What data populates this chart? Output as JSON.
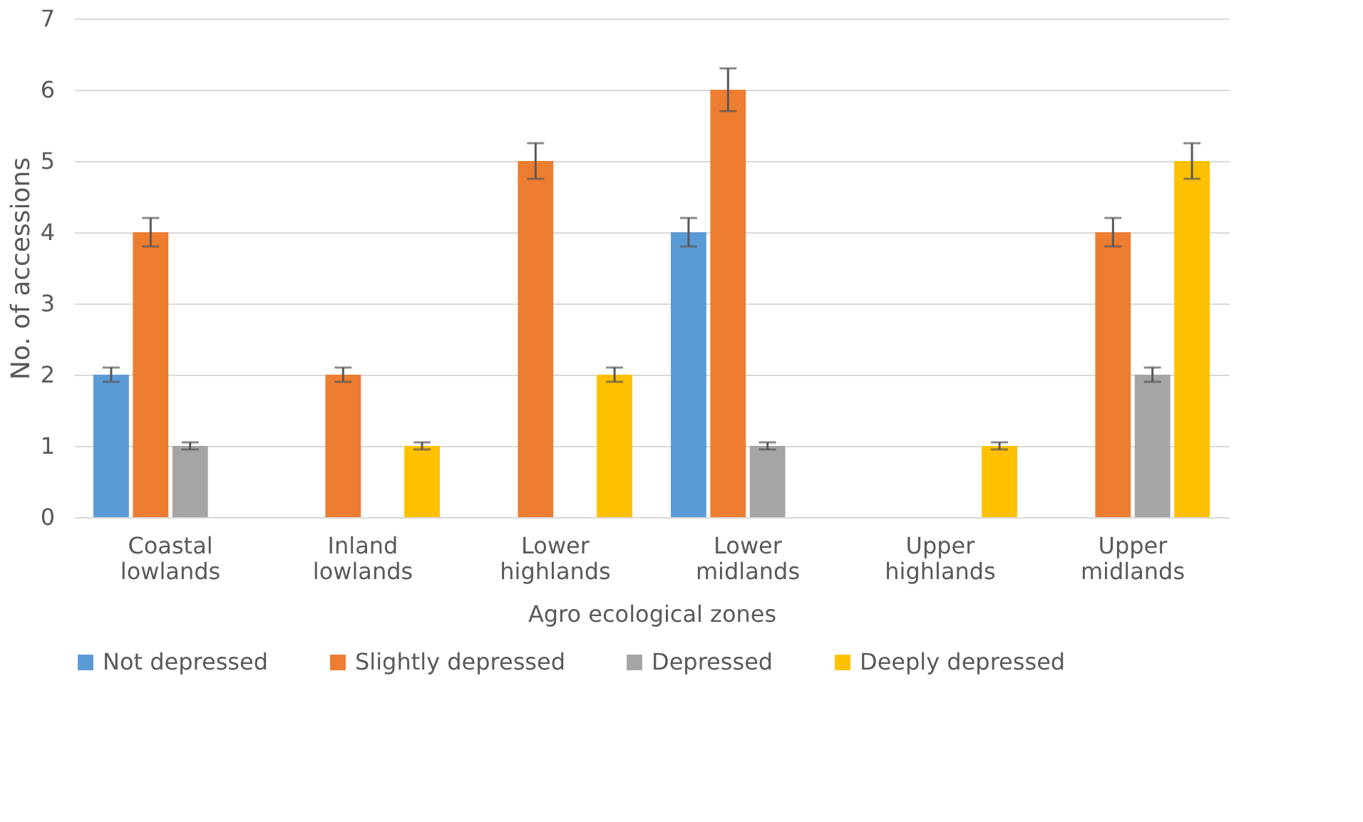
{
  "chart_data": {
    "type": "bar",
    "xlabel": "Agro ecological zones",
    "ylabel": "No. of accessions",
    "categories": [
      "Coastal lowlands",
      "Inland lowlands",
      "Lower highlands",
      "Lower midlands",
      "Upper highlands",
      "Upper midlands"
    ],
    "series": [
      {
        "name": "Not depressed",
        "color": "#5b9bd5",
        "values": [
          2,
          null,
          null,
          4,
          null,
          null
        ],
        "errors": [
          0.1,
          null,
          null,
          0.2,
          null,
          null
        ]
      },
      {
        "name": "Slightly depressed",
        "color": "#ed7d31",
        "values": [
          4,
          2,
          5,
          6,
          null,
          4
        ],
        "errors": [
          0.2,
          0.1,
          0.25,
          0.3,
          null,
          0.2
        ]
      },
      {
        "name": "Depressed",
        "color": "#a5a5a5",
        "values": [
          1,
          null,
          null,
          1,
          null,
          2
        ],
        "errors": [
          0.05,
          null,
          null,
          0.05,
          null,
          0.1
        ]
      },
      {
        "name": "Deeply depressed",
        "color": "#ffc000",
        "values": [
          null,
          1,
          2,
          null,
          1,
          5
        ],
        "errors": [
          null,
          0.05,
          0.1,
          null,
          0.05,
          0.25
        ]
      }
    ],
    "ylim": [
      0,
      7
    ],
    "yticks": [
      0,
      1,
      2,
      3,
      4,
      5,
      6,
      7
    ],
    "grid": "y",
    "legend": "bottom"
  }
}
